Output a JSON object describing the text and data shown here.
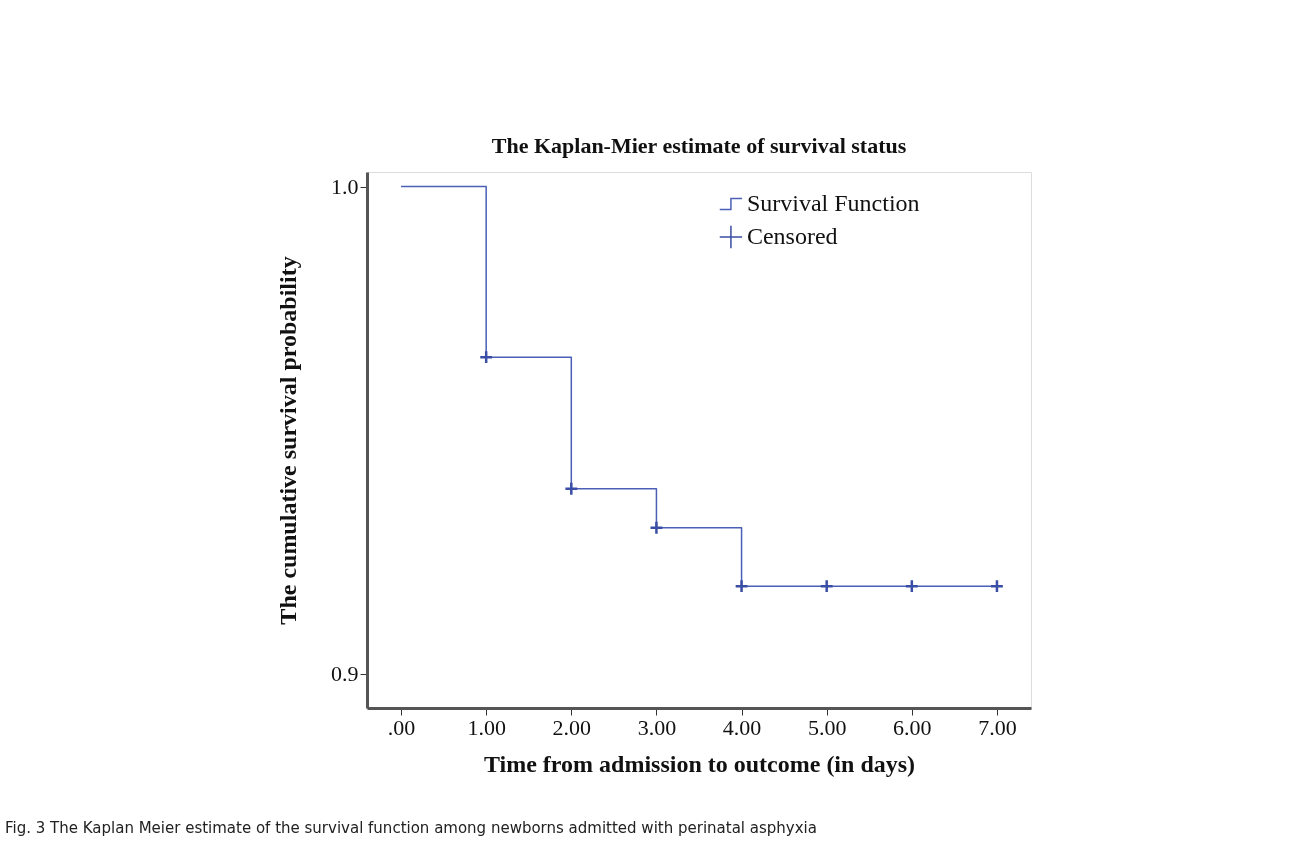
{
  "chart_data": {
    "type": "step",
    "title": "The Kaplan-Mier estimate of survival status",
    "xlabel": "Time from admission to outcome (in days)",
    "ylabel": "The cumulative survival probability",
    "annotations": [
      "Fig. 3 The Kaplan Meier estimate of the survival function among newborns admitted with perinatal asphyxia"
    ],
    "series": [
      {
        "name": "Survival Function",
        "color": "#4a5fb5",
        "x": [
          0,
          1,
          2,
          3,
          4,
          5,
          6,
          7
        ],
        "values": [
          1.0,
          0.965,
          0.938,
          0.93,
          0.918,
          0.918,
          0.918,
          0.918
        ],
        "marker": "none"
      },
      {
        "name": "Censored",
        "type": "scatter",
        "color": "#3a4ea5",
        "x": [
          1,
          2,
          3,
          4,
          5,
          6,
          7
        ],
        "values": [
          0.965,
          0.938,
          0.93,
          0.918,
          0.918,
          0.918,
          0.918
        ],
        "marker": "cross"
      }
    ],
    "xlim": [
      -0.4,
      7.4
    ],
    "ylim": [
      0.893,
      1.003
    ],
    "xticks": [
      {
        "value": 0,
        "label": ".00"
      },
      {
        "value": 1,
        "label": "1.00"
      },
      {
        "value": 2,
        "label": "2.00"
      },
      {
        "value": 3,
        "label": "3.00"
      },
      {
        "value": 4,
        "label": "4.00"
      },
      {
        "value": 5,
        "label": "5.00"
      },
      {
        "value": 6,
        "label": "6.00"
      },
      {
        "value": 7,
        "label": "7.00"
      }
    ],
    "yticks": [
      {
        "value": 0.9,
        "label": "0.9"
      },
      {
        "value": 1.0,
        "label": "1.0"
      }
    ],
    "grid": false,
    "legend": "top right"
  }
}
